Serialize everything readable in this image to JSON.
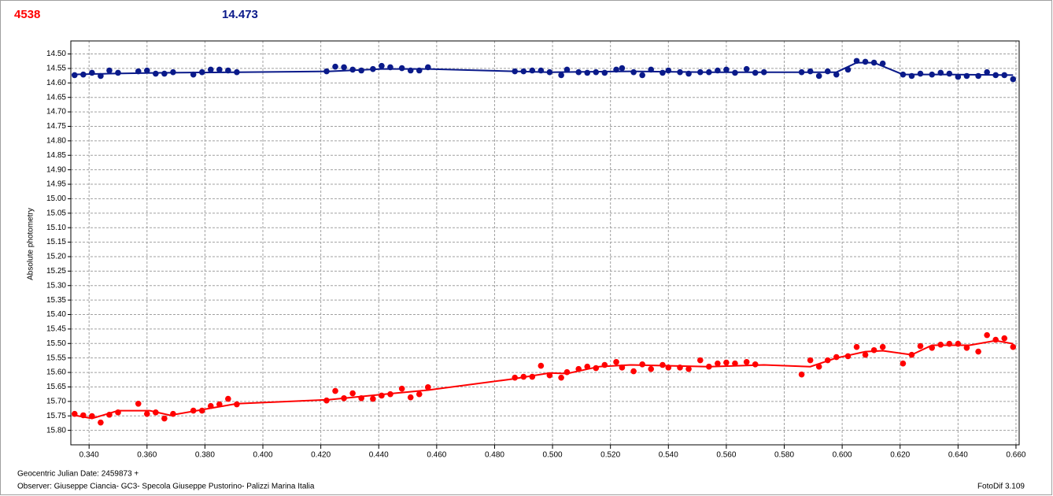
{
  "chart_data": {
    "type": "scatter",
    "header_left": "4538",
    "header_right": "14.473",
    "y_label": "Absolute photometry",
    "x_label": "Geocentric Julian Date: 2459873 +",
    "observer": "Observer: Giuseppe Ciancia- GC3- Specola Giuseppe Pustorino- Palizzi Marina Italia",
    "software": "FotoDif 3.109",
    "grid": true,
    "xlim": [
      0.3337,
      0.6611
    ],
    "ylim": [
      15.85,
      14.455
    ],
    "xticks": [
      {
        "value": 0.34,
        "label": "0.340"
      },
      {
        "value": 0.36,
        "label": "0.360"
      },
      {
        "value": 0.38,
        "label": "0.380"
      },
      {
        "value": 0.4,
        "label": "0.400"
      },
      {
        "value": 0.42,
        "label": "0.420"
      },
      {
        "value": 0.44,
        "label": "0.440"
      },
      {
        "value": 0.46,
        "label": "0.460"
      },
      {
        "value": 0.48,
        "label": "0.480"
      },
      {
        "value": 0.5,
        "label": "0.500"
      },
      {
        "value": 0.52,
        "label": "0.520"
      },
      {
        "value": 0.54,
        "label": "0.540"
      },
      {
        "value": 0.56,
        "label": "0.560"
      },
      {
        "value": 0.58,
        "label": "0.580"
      },
      {
        "value": 0.6,
        "label": "0.600"
      },
      {
        "value": 0.62,
        "label": "0.620"
      },
      {
        "value": 0.64,
        "label": "0.640"
      },
      {
        "value": 0.66,
        "label": "0.660"
      }
    ],
    "yticks": [
      {
        "value": 14.5,
        "label": "14.50"
      },
      14.55,
      {
        "value": 14.6,
        "label": "14.60"
      },
      14.65,
      {
        "value": 14.7,
        "label": "14.70"
      },
      14.75,
      {
        "value": 14.8,
        "label": "14.80"
      },
      14.85,
      {
        "value": 14.9,
        "label": "14.90"
      },
      14.95,
      {
        "value": 15.0,
        "label": "15.00"
      },
      15.05,
      {
        "value": 15.1,
        "label": "15.10"
      },
      15.15,
      {
        "value": 15.2,
        "label": "15.20"
      },
      15.25,
      {
        "value": 15.3,
        "label": "15.30"
      },
      15.35,
      {
        "value": 15.4,
        "label": "15.40"
      },
      15.45,
      {
        "value": 15.5,
        "label": "15.50"
      },
      15.55,
      {
        "value": 15.6,
        "label": "15.60"
      },
      15.65,
      {
        "value": 15.7,
        "label": "15.70"
      },
      15.75,
      {
        "value": 15.8,
        "label": "15.80"
      }
    ],
    "series": [
      {
        "color": "#0a1a8a",
        "mode": "markers",
        "x": [
          0.335,
          0.338,
          0.341,
          0.344,
          0.347,
          0.35,
          0.357,
          0.36,
          0.363,
          0.366,
          0.369,
          0.376,
          0.379,
          0.382,
          0.385,
          0.388,
          0.391,
          0.422,
          0.425,
          0.428,
          0.431,
          0.434,
          0.438,
          0.441,
          0.444,
          0.448,
          0.451,
          0.454,
          0.457,
          0.487,
          0.49,
          0.493,
          0.496,
          0.499,
          0.503,
          0.505,
          0.509,
          0.512,
          0.515,
          0.518,
          0.522,
          0.524,
          0.528,
          0.531,
          0.534,
          0.538,
          0.54,
          0.544,
          0.547,
          0.551,
          0.554,
          0.557,
          0.56,
          0.563,
          0.567,
          0.57,
          0.573,
          0.586,
          0.589,
          0.592,
          0.595,
          0.598,
          0.602,
          0.605,
          0.608,
          0.611,
          0.614,
          0.621,
          0.624,
          0.627,
          0.631,
          0.634,
          0.637,
          0.64,
          0.643,
          0.647,
          0.65,
          0.653,
          0.656,
          0.659
        ],
        "values": [
          14.573,
          14.571,
          14.565,
          14.576,
          14.557,
          14.565,
          14.56,
          14.557,
          14.568,
          14.568,
          14.563,
          14.571,
          14.563,
          14.554,
          14.554,
          14.557,
          14.563,
          14.56,
          14.544,
          14.546,
          14.554,
          14.557,
          14.552,
          14.541,
          14.546,
          14.549,
          14.557,
          14.557,
          14.546,
          14.56,
          14.56,
          14.557,
          14.557,
          14.563,
          14.573,
          14.554,
          14.563,
          14.565,
          14.563,
          14.565,
          14.554,
          14.549,
          14.563,
          14.573,
          14.554,
          14.565,
          14.557,
          14.563,
          14.568,
          14.563,
          14.563,
          14.557,
          14.554,
          14.565,
          14.552,
          14.565,
          14.563,
          14.563,
          14.56,
          14.576,
          14.56,
          14.571,
          14.554,
          14.524,
          14.527,
          14.53,
          14.533,
          14.571,
          14.576,
          14.568,
          14.571,
          14.565,
          14.568,
          14.579,
          14.576,
          14.576,
          14.563,
          14.573,
          14.573,
          14.587
        ]
      },
      {
        "color": "#0a1a8a",
        "mode": "line",
        "x": [
          0.334,
          0.347,
          0.364,
          0.391,
          0.423,
          0.441,
          0.457,
          0.487,
          0.499,
          0.527,
          0.554,
          0.581,
          0.598,
          0.605,
          0.611,
          0.621,
          0.636,
          0.659
        ],
        "values": [
          14.571,
          14.568,
          14.565,
          14.563,
          14.56,
          14.552,
          14.552,
          14.56,
          14.563,
          14.56,
          14.563,
          14.563,
          14.563,
          14.53,
          14.53,
          14.571,
          14.571,
          14.573
        ]
      },
      {
        "color": "#ff0000",
        "mode": "markers",
        "x": [
          0.335,
          0.338,
          0.341,
          0.344,
          0.347,
          0.35,
          0.357,
          0.36,
          0.363,
          0.366,
          0.369,
          0.376,
          0.379,
          0.382,
          0.385,
          0.388,
          0.391,
          0.422,
          0.425,
          0.428,
          0.431,
          0.434,
          0.438,
          0.441,
          0.444,
          0.448,
          0.451,
          0.454,
          0.457,
          0.487,
          0.49,
          0.493,
          0.496,
          0.499,
          0.503,
          0.505,
          0.509,
          0.512,
          0.515,
          0.518,
          0.522,
          0.524,
          0.528,
          0.531,
          0.534,
          0.538,
          0.54,
          0.544,
          0.547,
          0.551,
          0.554,
          0.557,
          0.56,
          0.563,
          0.567,
          0.57,
          0.586,
          0.589,
          0.592,
          0.595,
          0.598,
          0.602,
          0.605,
          0.608,
          0.611,
          0.614,
          0.621,
          0.624,
          0.627,
          0.631,
          0.634,
          0.637,
          0.64,
          0.643,
          0.647,
          0.65,
          0.653,
          0.656,
          0.659
        ],
        "values": [
          15.743,
          15.748,
          15.751,
          15.773,
          15.746,
          15.738,
          15.708,
          15.743,
          15.738,
          15.759,
          15.743,
          15.732,
          15.732,
          15.716,
          15.71,
          15.691,
          15.71,
          15.697,
          15.664,
          15.689,
          15.672,
          15.689,
          15.691,
          15.68,
          15.675,
          15.656,
          15.686,
          15.675,
          15.651,
          15.618,
          15.615,
          15.615,
          15.577,
          15.61,
          15.618,
          15.599,
          15.588,
          15.58,
          15.585,
          15.574,
          15.564,
          15.583,
          15.596,
          15.572,
          15.588,
          15.574,
          15.583,
          15.583,
          15.588,
          15.558,
          15.58,
          15.569,
          15.566,
          15.569,
          15.564,
          15.572,
          15.607,
          15.558,
          15.58,
          15.558,
          15.547,
          15.544,
          15.512,
          15.539,
          15.523,
          15.512,
          15.569,
          15.539,
          15.509,
          15.515,
          15.504,
          15.501,
          15.501,
          15.515,
          15.528,
          15.471,
          15.487,
          15.482,
          15.512
        ]
      },
      {
        "color": "#ff0000",
        "mode": "line",
        "x": [
          0.335,
          0.341,
          0.35,
          0.361,
          0.368,
          0.38,
          0.391,
          0.423,
          0.437,
          0.457,
          0.486,
          0.499,
          0.505,
          0.516,
          0.527,
          0.554,
          0.573,
          0.589,
          0.598,
          0.608,
          0.614,
          0.624,
          0.631,
          0.644,
          0.653,
          0.659
        ],
        "values": [
          15.748,
          15.759,
          15.732,
          15.732,
          15.748,
          15.727,
          15.708,
          15.694,
          15.68,
          15.661,
          15.623,
          15.602,
          15.604,
          15.58,
          15.574,
          15.58,
          15.574,
          15.58,
          15.55,
          15.528,
          15.525,
          15.539,
          15.506,
          15.506,
          15.49,
          15.501
        ]
      }
    ]
  }
}
